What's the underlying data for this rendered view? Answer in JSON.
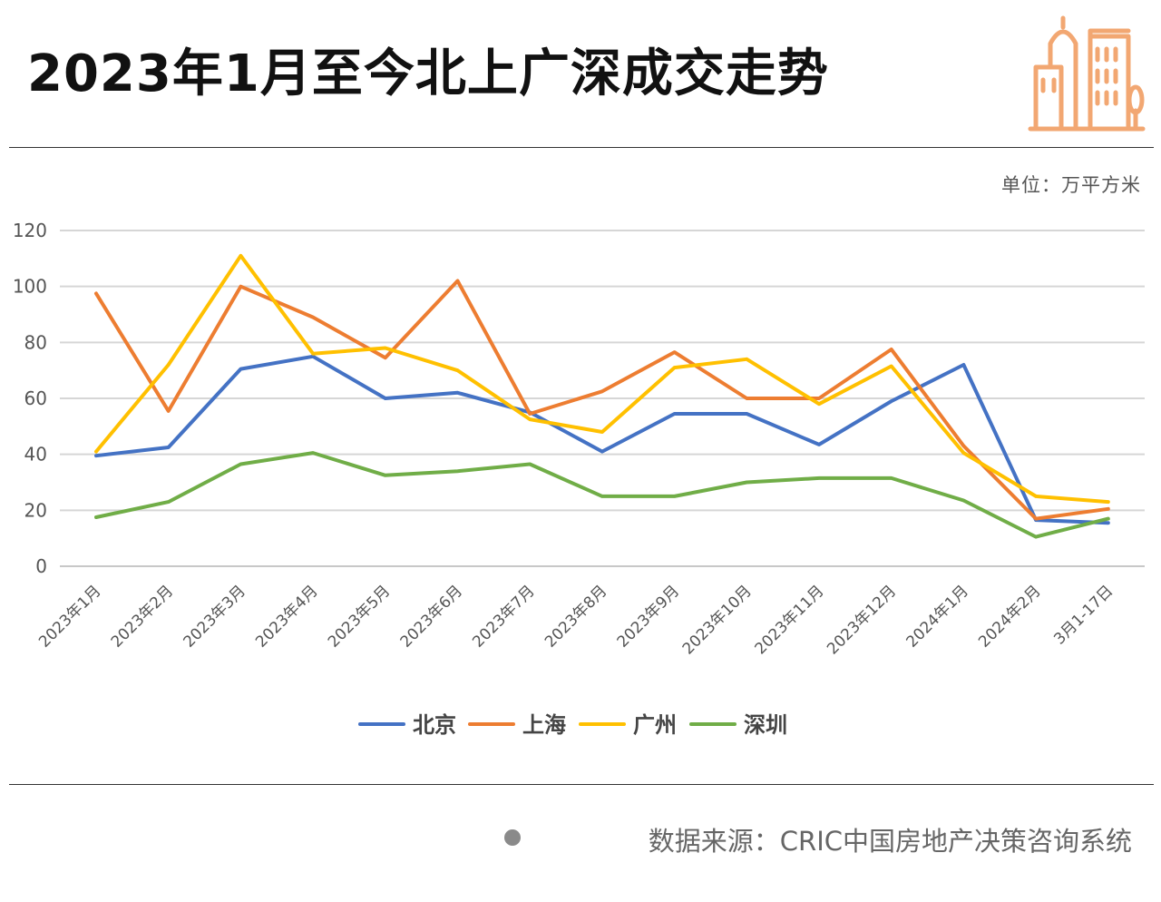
{
  "header": {
    "title": "2023年1月至今北上广深成交走势",
    "logo_icon": "building-icon",
    "logo_color": "#f2a772"
  },
  "unit_label": "单位：万平方米",
  "footer": {
    "source": "数据来源：CRIC中国房地产决策咨询系统"
  },
  "chart_data": {
    "type": "line",
    "categories": [
      "2023年1月",
      "2023年2月",
      "2023年3月",
      "2023年4月",
      "2023年5月",
      "2023年6月",
      "2023年7月",
      "2023年8月",
      "2023年9月",
      "2023年10月",
      "2023年11月",
      "2023年12月",
      "2024年1月",
      "2024年2月",
      "3月1-17日"
    ],
    "series": [
      {
        "name": "北京",
        "color": "#4472c4",
        "values": [
          39.5,
          42.5,
          70.5,
          75,
          60,
          62,
          55,
          41,
          54.5,
          54.5,
          43.5,
          59,
          72,
          16.5,
          15.5
        ]
      },
      {
        "name": "上海",
        "color": "#ed7d31",
        "values": [
          97.5,
          55.5,
          100,
          89,
          74.5,
          102,
          54.5,
          62.5,
          76.5,
          60,
          60,
          77.5,
          43,
          17,
          20.5
        ]
      },
      {
        "name": "广州",
        "color": "#ffc000",
        "values": [
          41,
          72,
          111,
          76,
          78,
          70,
          52.5,
          48,
          71,
          74,
          58,
          71.5,
          40.5,
          25,
          23
        ]
      },
      {
        "name": "深圳",
        "color": "#70ad47",
        "values": [
          17.5,
          23,
          36.5,
          40.5,
          32.5,
          34,
          36.5,
          25,
          25,
          30,
          31.5,
          31.5,
          23.5,
          10.5,
          17
        ]
      }
    ],
    "ylim": [
      0,
      120
    ],
    "yticks": [
      0,
      20,
      40,
      60,
      80,
      100,
      120
    ],
    "grid": true,
    "legend": "bottom"
  }
}
